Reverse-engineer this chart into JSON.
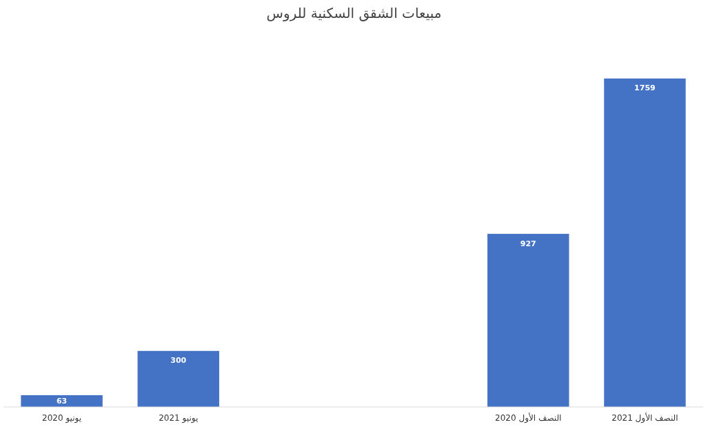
{
  "chart_data": {
    "type": "bar",
    "title": "مبيعات الشقق السكنية للروس",
    "categories": [
      "يونيو 2020",
      "يونيو 2021",
      null,
      null,
      "النصف الأول 2020",
      "النصف الأول 2021"
    ],
    "values": [
      63,
      300,
      null,
      null,
      927,
      1759
    ],
    "color": "#4472c4",
    "data_labels": true
  }
}
